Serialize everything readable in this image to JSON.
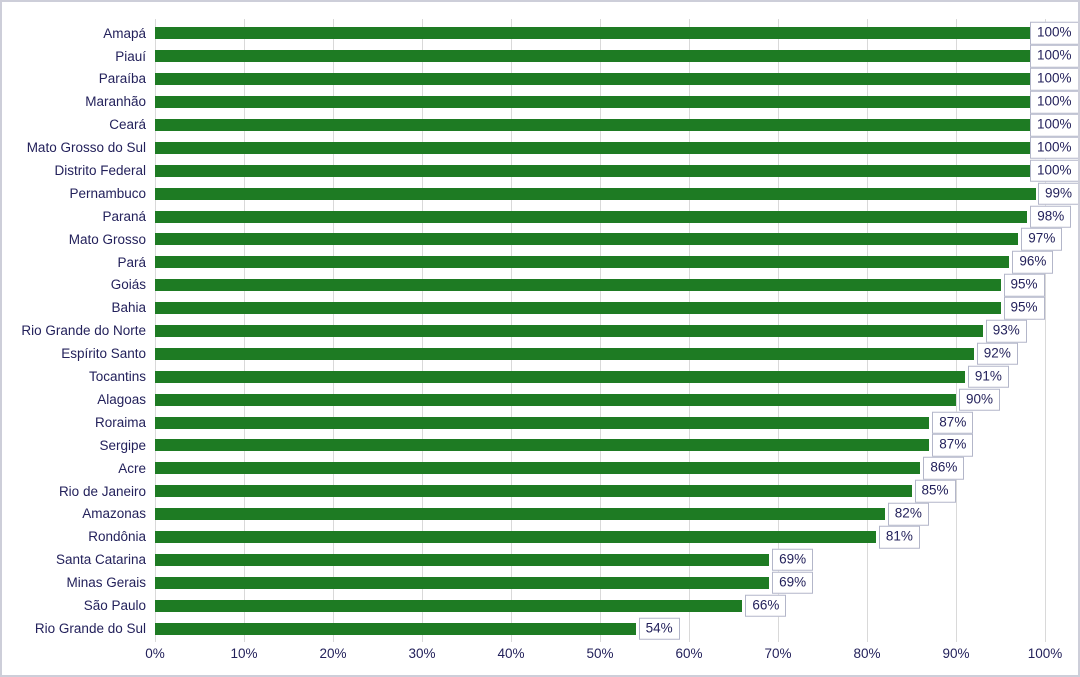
{
  "chart_data": {
    "type": "bar",
    "orientation": "horizontal",
    "title": "",
    "xlabel": "",
    "ylabel": "",
    "categories": [
      "Amapá",
      "Piauí",
      "Paraíba",
      "Maranhão",
      "Ceará",
      "Mato Grosso do Sul",
      "Distrito Federal",
      "Pernambuco",
      "Paraná",
      "Mato Grosso",
      "Pará",
      "Goiás",
      "Bahia",
      "Rio Grande do Norte",
      "Espírito Santo",
      "Tocantins",
      "Alagoas",
      "Roraima",
      "Sergipe",
      "Acre",
      "Rio de Janeiro",
      "Amazonas",
      "Rondônia",
      "Santa Catarina",
      "Minas Gerais",
      "São Paulo",
      "Rio Grande do Sul"
    ],
    "values": [
      100,
      100,
      100,
      100,
      100,
      100,
      100,
      99,
      98,
      97,
      96,
      95,
      95,
      93,
      92,
      91,
      90,
      87,
      87,
      86,
      85,
      82,
      81,
      69,
      69,
      66,
      54
    ],
    "data_labels": [
      "100%",
      "100%",
      "100%",
      "100%",
      "100%",
      "100%",
      "100%",
      "99%",
      "98%",
      "97%",
      "96%",
      "95%",
      "95%",
      "93%",
      "92%",
      "91%",
      "90%",
      "87%",
      "87%",
      "86%",
      "85%",
      "82%",
      "81%",
      "69%",
      "69%",
      "66%",
      "54%"
    ],
    "x_ticks": [
      "0%",
      "10%",
      "20%",
      "30%",
      "40%",
      "50%",
      "60%",
      "70%",
      "80%",
      "90%",
      "100%"
    ],
    "xlim": [
      0,
      100
    ],
    "grid": "vertical",
    "legend": "none",
    "colors": {
      "bar": "#1e7b23",
      "text": "#23215b",
      "gridline": "#d9d9d9",
      "data_label_box_border": "#b3b6c9",
      "data_label_box_fill": "#ffffff",
      "background": "#ffffff",
      "frame_border": "#cdced9"
    }
  }
}
